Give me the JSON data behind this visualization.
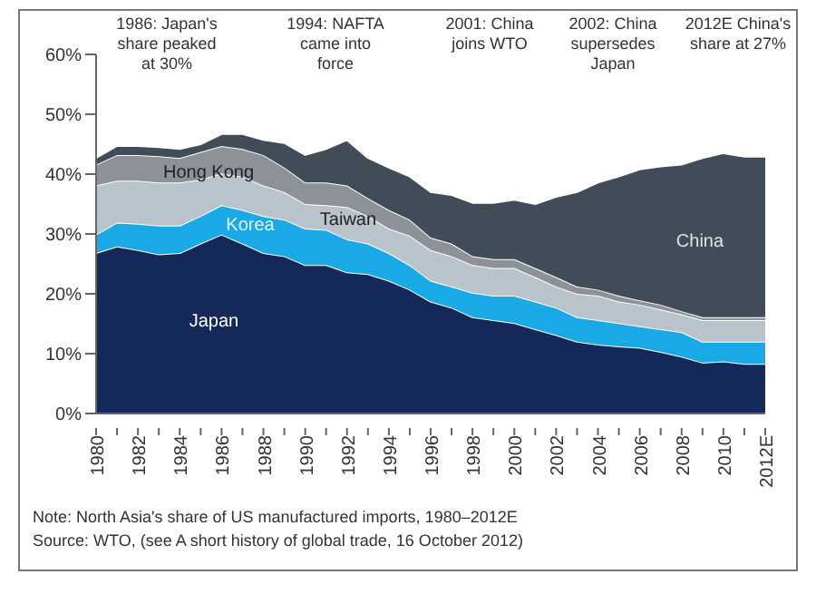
{
  "chart_data": {
    "type": "area",
    "stacked": true,
    "categories": [
      "1980",
      null,
      "1982",
      null,
      "1984",
      null,
      "1986",
      null,
      "1988",
      null,
      "1990",
      null,
      "1992",
      null,
      "1994",
      null,
      "1996",
      null,
      "1998",
      null,
      "2000",
      null,
      "2002",
      null,
      "2004",
      null,
      "2006",
      null,
      "2008",
      null,
      "2010",
      null,
      "2012E"
    ],
    "ylim": [
      0,
      60
    ],
    "yticks": [
      {
        "value": 0,
        "label": "0%"
      },
      {
        "value": 10,
        "label": "10%"
      },
      {
        "value": 20,
        "label": "20%"
      },
      {
        "value": 30,
        "label": "30%"
      },
      {
        "value": 40,
        "label": "40%"
      },
      {
        "value": 50,
        "label": "50%"
      },
      {
        "value": 60,
        "label": "60%"
      }
    ],
    "series": [
      {
        "name": "Japan",
        "color": "#14285a",
        "values": [
          26.8,
          27.9,
          27.3,
          26.6,
          26.8,
          28.4,
          29.9,
          28.4,
          26.8,
          26.3,
          24.8,
          24.8,
          23.6,
          23.3,
          22.2,
          20.7,
          18.7,
          17.7,
          16.1,
          15.6,
          15.1,
          14.1,
          13.1,
          12.0,
          11.5,
          11.2,
          11.0,
          10.3,
          9.5,
          8.5,
          8.7,
          8.3,
          8.3
        ]
      },
      {
        "name": "Korea",
        "color": "#19a9e6",
        "values": [
          3.1,
          4.0,
          4.4,
          4.8,
          4.6,
          4.6,
          4.9,
          5.6,
          6.2,
          6.1,
          6.1,
          5.9,
          5.5,
          5.1,
          4.6,
          4.1,
          3.5,
          3.5,
          4.1,
          4.1,
          4.6,
          4.6,
          4.6,
          4.1,
          4.1,
          3.9,
          3.6,
          3.8,
          4.1,
          3.5,
          3.3,
          3.7,
          3.7
        ]
      },
      {
        "name": "Taiwan",
        "color": "#b9c3cb",
        "values": [
          8.2,
          7.0,
          7.2,
          7.2,
          7.2,
          6.1,
          5.3,
          5.6,
          5.1,
          4.6,
          4.1,
          4.1,
          5.4,
          4.6,
          4.1,
          4.9,
          5.1,
          5.1,
          4.6,
          4.6,
          4.6,
          4.1,
          3.5,
          3.9,
          4.1,
          3.6,
          3.6,
          3.3,
          3.0,
          3.6,
          3.6,
          3.6,
          3.6
        ]
      },
      {
        "name": "Hong Kong",
        "color": "#8c9298",
        "values": [
          3.5,
          4.3,
          4.3,
          4.4,
          4.1,
          4.6,
          4.6,
          4.6,
          5.1,
          4.1,
          3.6,
          3.8,
          3.6,
          3.0,
          3.1,
          2.7,
          2.1,
          2.1,
          1.5,
          1.5,
          1.5,
          1.5,
          1.6,
          1.2,
          1.0,
          1.0,
          0.7,
          0.8,
          0.5,
          0.5,
          0.5,
          0.5,
          0.5
        ]
      },
      {
        "name": "China",
        "color": "#404c58",
        "values": [
          1.1,
          1.5,
          1.5,
          1.5,
          1.5,
          1.3,
          2.0,
          2.5,
          2.5,
          4.1,
          4.6,
          5.6,
          7.6,
          6.7,
          7.1,
          7.2,
          7.6,
          8.1,
          8.9,
          9.4,
          9.9,
          10.7,
          13.4,
          15.8,
          17.9,
          19.9,
          21.9,
          23.1,
          24.5,
          26.6,
          27.4,
          26.8,
          26.8
        ]
      }
    ],
    "annotations": [
      "1986: Japan's\nshare peaked\nat 30%",
      "1994: NAFTA\ncame into\nforce",
      "2001: China\njoins WTO",
      "2002: China\nsupersedes\nJapan",
      "2012E China's\nshare at 27%",
      "Note: North Asia's share of US manufactured imports, 1980–2012E",
      "Source: WTO, (see A short history of global trade, 16 October 2012)"
    ]
  }
}
